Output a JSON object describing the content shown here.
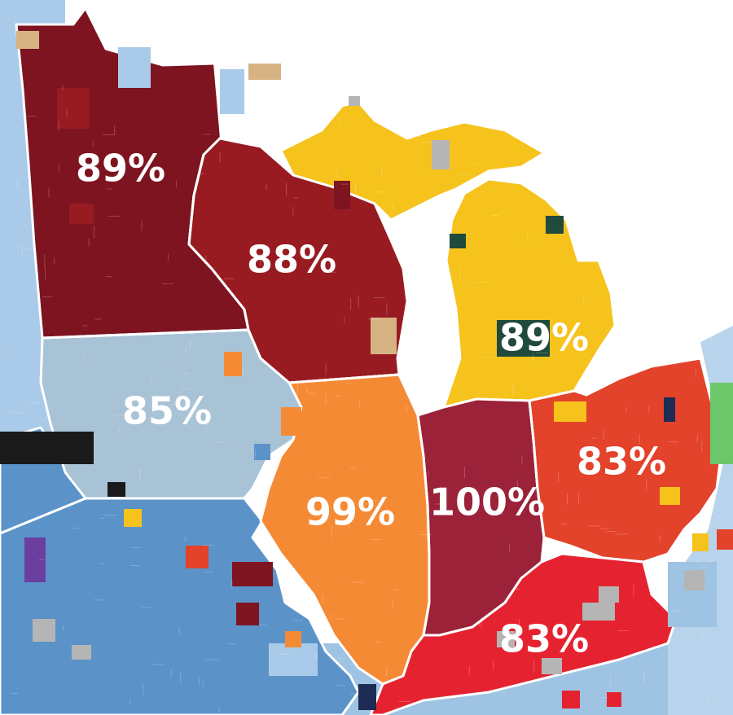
{
  "map": {
    "colors": {
      "water": "#ffffff",
      "minnesota": "#7d1420",
      "wisconsin": "#981b22",
      "michigan": "#f6c21c",
      "michigan_state_patches": "#1f4a3c",
      "iowa": "#a9c3d6",
      "illinois": "#f58a35",
      "indiana": "#9b2238",
      "ohio": "#e3422b",
      "kentucky": "#e52330",
      "missouri": "#5b93c9",
      "west_region": "#a9cbe9",
      "south_region": "#9fc3e2",
      "northeast_region": "#b8d3ec",
      "tan_patches": "#d7b283",
      "gray_patches": "#b5b5b5",
      "black_patches": "#1a1a1a",
      "purple_patch": "#6b3fa0",
      "green_patch": "#6cc76b",
      "navy_patch": "#1d2b55"
    },
    "states": [
      {
        "id": "minnesota",
        "label": "89%",
        "value": 89
      },
      {
        "id": "wisconsin",
        "label": "88%",
        "value": 88
      },
      {
        "id": "michigan",
        "label": "89%",
        "value": 89
      },
      {
        "id": "iowa",
        "label": "85%",
        "value": 85
      },
      {
        "id": "illinois",
        "label": "99%",
        "value": 99
      },
      {
        "id": "indiana",
        "label": "100%",
        "value": 100
      },
      {
        "id": "ohio",
        "label": "83%",
        "value": 83
      },
      {
        "id": "kentucky",
        "label": "83%",
        "value": 83
      }
    ]
  }
}
